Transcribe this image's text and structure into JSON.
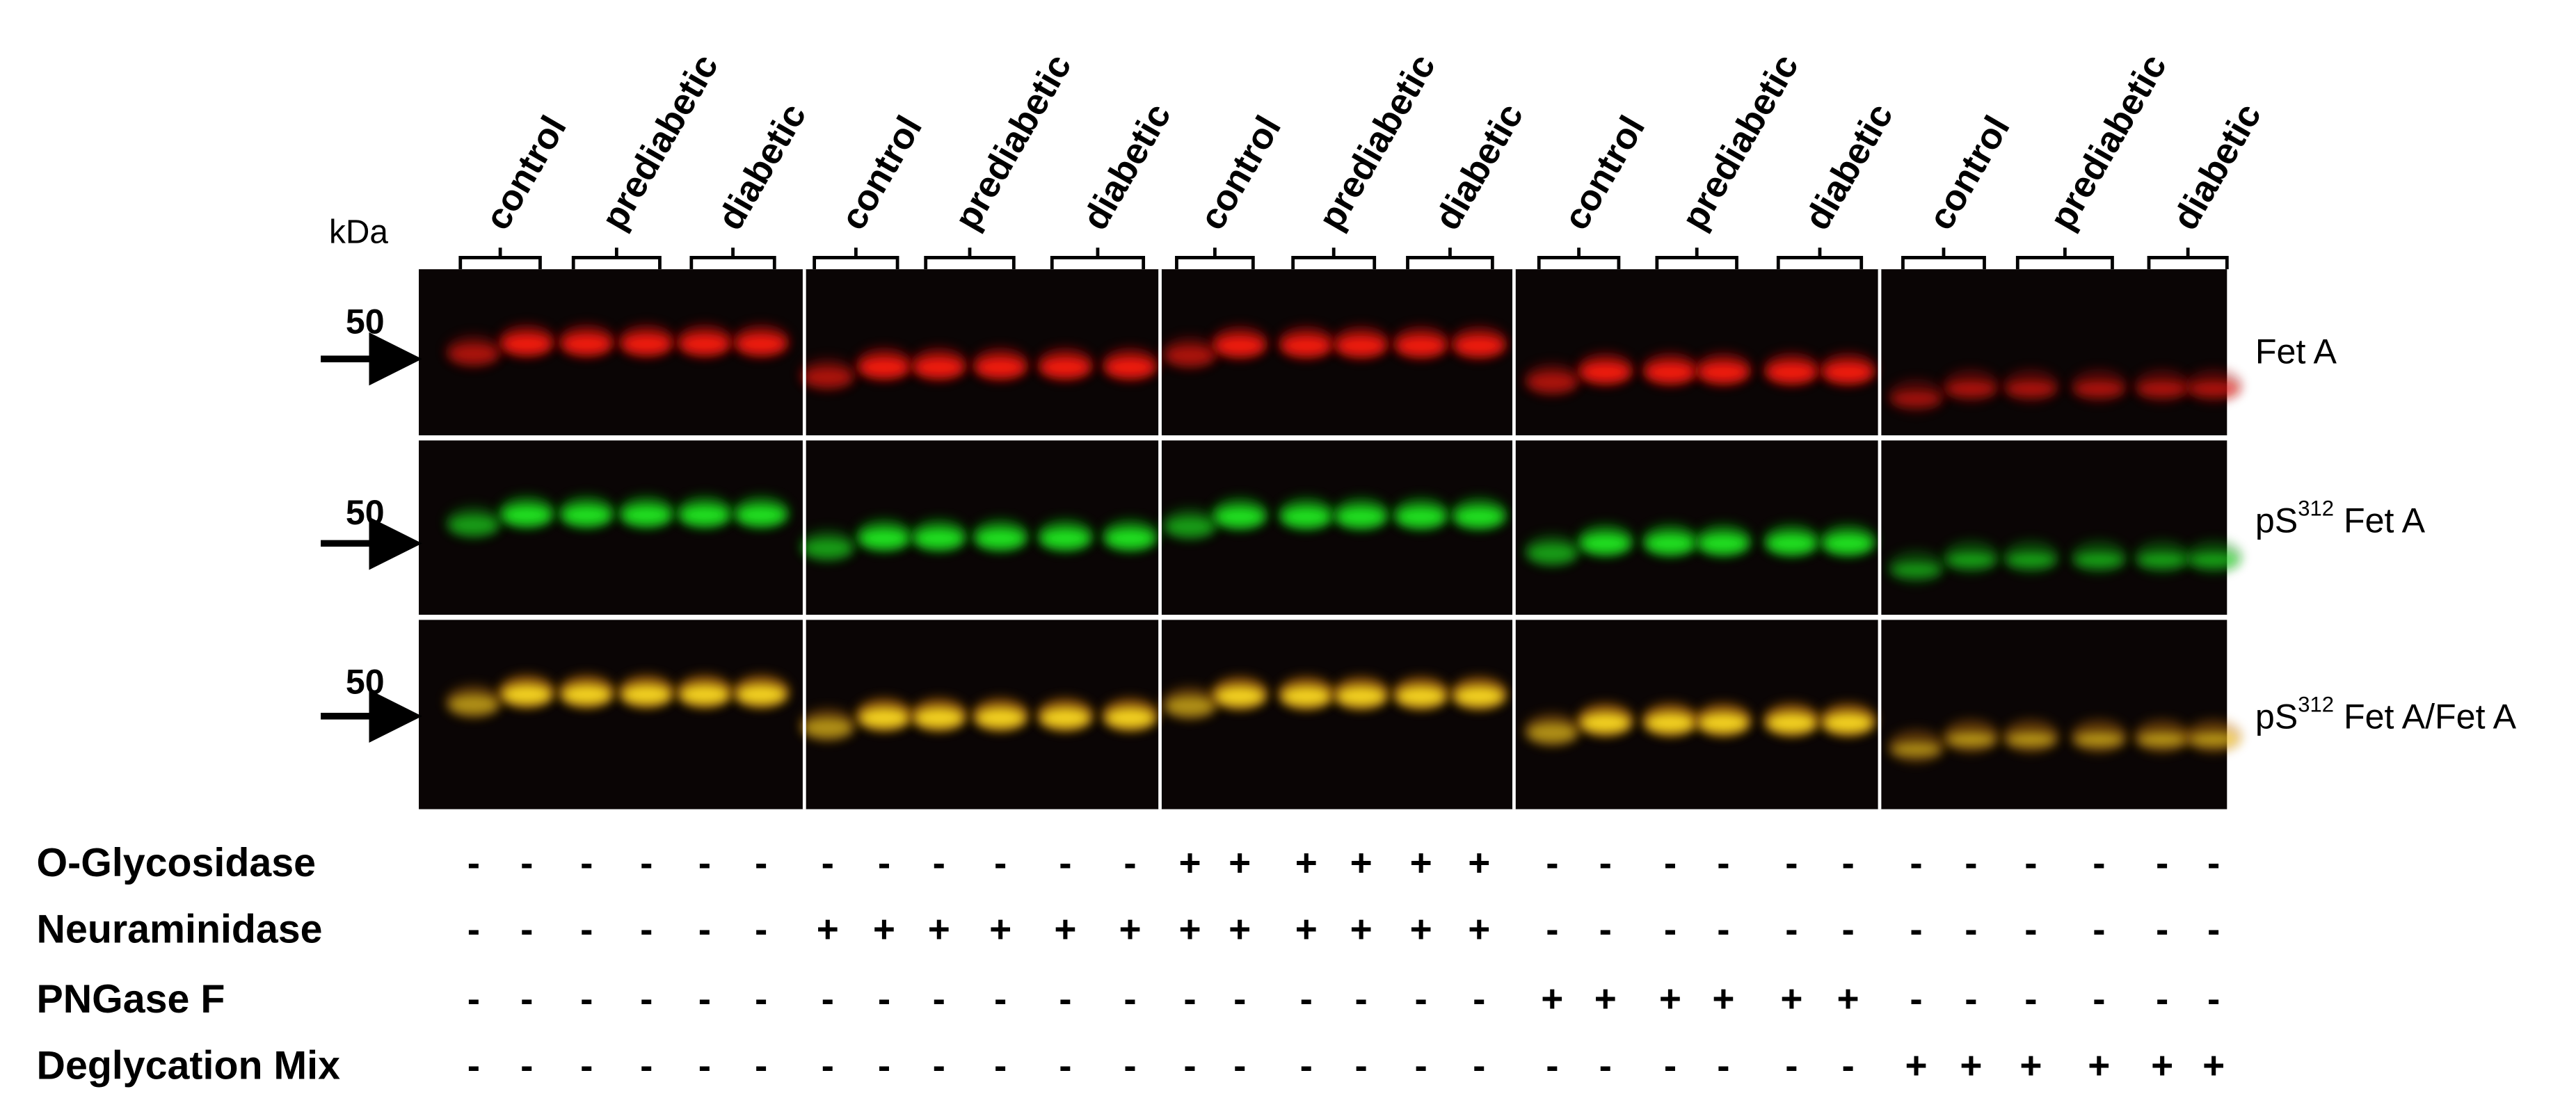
{
  "header": {
    "kda": "kDa"
  },
  "panels": [
    {
      "groups": [
        "control",
        "prediabetic",
        "diabetic"
      ]
    },
    {
      "groups": [
        "control",
        "prediabetic",
        "diabetic"
      ]
    },
    {
      "groups": [
        "control",
        "prediabetic",
        "diabetic"
      ]
    },
    {
      "groups": [
        "control",
        "prediabetic",
        "diabetic"
      ]
    },
    {
      "groups": [
        "control",
        "prediabetic",
        "diabetic"
      ]
    }
  ],
  "markers": [
    "50",
    "50",
    "50"
  ],
  "row_labels": [
    {
      "text": "Fet A"
    },
    {
      "prefix": "pS",
      "sup": "312",
      "suffix": " Fet A"
    },
    {
      "prefix": "pS",
      "sup": "312",
      "suffix": " Fet A/Fet A"
    }
  ],
  "treatments": [
    {
      "name": "O-Glycosidase",
      "signs": [
        "-",
        "-",
        "-",
        "-",
        "-",
        "-",
        "-",
        "-",
        "-",
        "-",
        "-",
        "-",
        "+",
        "+",
        "+",
        "+",
        "+",
        "+",
        "-",
        "-",
        "-",
        "-",
        "-",
        "-",
        "-",
        "-",
        "-",
        "-",
        "-",
        "-"
      ]
    },
    {
      "name": "Neuraminidase",
      "signs": [
        "-",
        "-",
        "-",
        "-",
        "-",
        "-",
        "+",
        "+",
        "+",
        "+",
        "+",
        "+",
        "+",
        "+",
        "+",
        "+",
        "+",
        "+",
        "-",
        "-",
        "-",
        "-",
        "-",
        "-",
        "-",
        "-",
        "-",
        "-",
        "-",
        "-"
      ]
    },
    {
      "name": "PNGase F",
      "signs": [
        "-",
        "-",
        "-",
        "-",
        "-",
        "-",
        "-",
        "-",
        "-",
        "-",
        "-",
        "-",
        "-",
        "-",
        "-",
        "-",
        "-",
        "-",
        "+",
        "+",
        "+",
        "+",
        "+",
        "+",
        "-",
        "-",
        "-",
        "-",
        "-",
        "-"
      ]
    },
    {
      "name": "Deglycation Mix",
      "signs": [
        "-",
        "-",
        "-",
        "-",
        "-",
        "-",
        "-",
        "-",
        "-",
        "-",
        "-",
        "-",
        "-",
        "-",
        "-",
        "-",
        "-",
        "-",
        "-",
        "-",
        "-",
        "-",
        "-",
        "-",
        "+",
        "+",
        "+",
        "+",
        "+",
        "+"
      ]
    }
  ]
}
